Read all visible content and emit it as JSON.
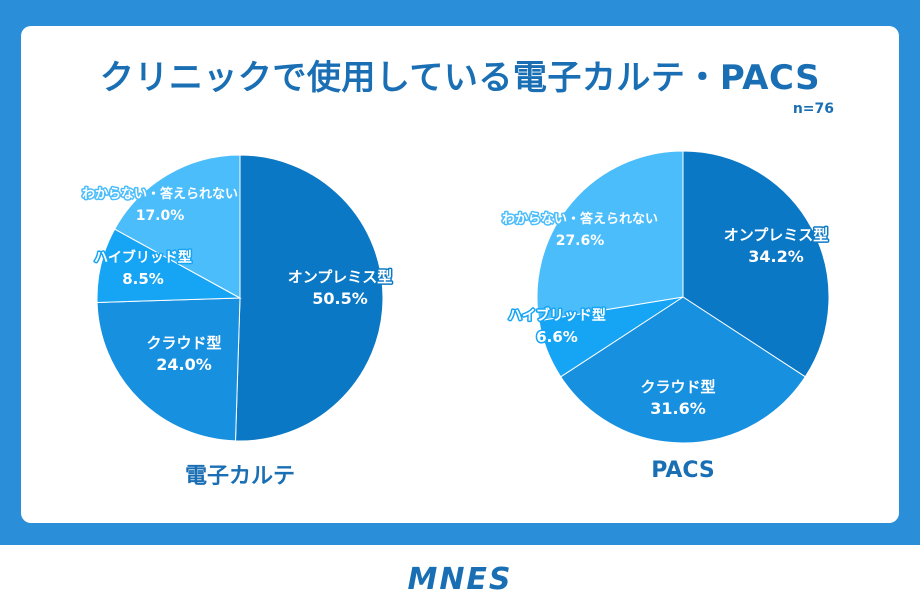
{
  "title": "クリニックで使用している電子カルテ・PACS",
  "note": "n=76",
  "logo": "MNES",
  "colors": {
    "frame": "#2b8ed8",
    "onprem": "#0b78c5",
    "cloud": "#1790e0",
    "hybrid": "#16a4f4",
    "unknown": "#4bbdfb"
  },
  "chart_data": [
    {
      "type": "pie",
      "caption": "電子カルテ",
      "slices": [
        {
          "label": "オンプレミス型",
          "value": 50.5,
          "display": "50.5%",
          "color": "#0b78c5"
        },
        {
          "label": "クラウド型",
          "value": 24.0,
          "display": "24.0%",
          "color": "#1790e0"
        },
        {
          "label": "ハイブリッド型",
          "value": 8.5,
          "display": "8.5%",
          "color": "#16a4f4"
        },
        {
          "label": "わからない・答えられない",
          "value": 17.0,
          "display": "17.0%",
          "color": "#4bbdfb"
        }
      ]
    },
    {
      "type": "pie",
      "caption": "PACS",
      "slices": [
        {
          "label": "オンプレミス型",
          "value": 34.2,
          "display": "34.2%",
          "color": "#0b78c5"
        },
        {
          "label": "クラウド型",
          "value": 31.6,
          "display": "31.6%",
          "color": "#1790e0"
        },
        {
          "label": "ハイブリッド型",
          "value": 6.6,
          "display": "6.6%",
          "color": "#16a4f4"
        },
        {
          "label": "わからない・答えられない",
          "value": 27.6,
          "display": "27.6%",
          "color": "#4bbdfb"
        }
      ]
    }
  ]
}
